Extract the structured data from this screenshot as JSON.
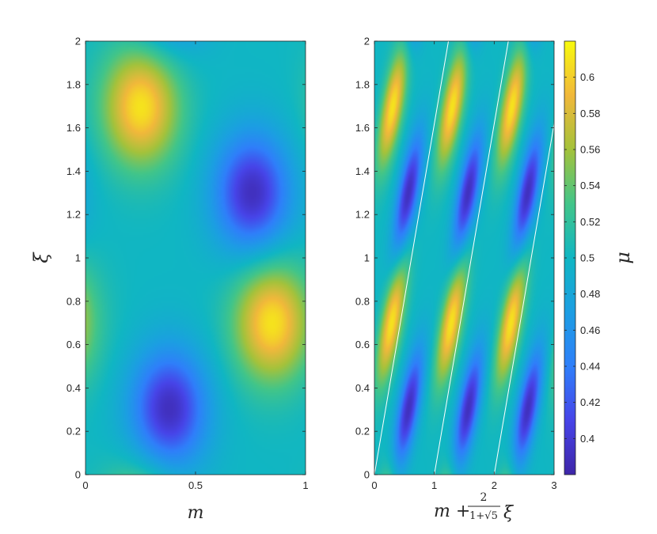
{
  "chart_data": [
    {
      "type": "heatmap",
      "panel": "left",
      "xlabel": "m",
      "ylabel": "ξ",
      "xlim": [
        0,
        1
      ],
      "ylim": [
        0,
        2
      ],
      "xticks": [
        "0",
        "0.5",
        "1"
      ],
      "xtick_values": [
        0,
        0.5,
        1
      ],
      "yticks": [
        "0",
        "0.2",
        "0.4",
        "0.6",
        "0.8",
        "1",
        "1.2",
        "1.4",
        "1.6",
        "1.8",
        "2"
      ],
      "ytick_values": [
        0,
        0.2,
        0.4,
        0.6,
        0.8,
        1,
        1.2,
        1.4,
        1.6,
        1.8,
        2
      ],
      "colormap": "parula",
      "features": [
        {
          "kind": "max",
          "x": 0.25,
          "y": 1.7,
          "value": 0.61
        },
        {
          "kind": "min",
          "x": 0.76,
          "y": 1.3,
          "value": 0.39
        },
        {
          "kind": "max",
          "x": 0.85,
          "y": 0.7,
          "value": 0.61
        },
        {
          "kind": "min",
          "x": 0.38,
          "y": 0.3,
          "value": 0.39
        }
      ]
    },
    {
      "type": "heatmap",
      "panel": "right",
      "xlabel": "m + 2/(1+√5) ξ",
      "ylabel": "",
      "xlim": [
        0,
        3
      ],
      "ylim": [
        0,
        2
      ],
      "xticks": [
        "0",
        "1",
        "2",
        "3"
      ],
      "xtick_values": [
        0,
        1,
        2,
        3
      ],
      "yticks": [
        "0",
        "0.2",
        "0.4",
        "0.6",
        "0.8",
        "1",
        "1.2",
        "1.4",
        "1.6",
        "1.8",
        "2"
      ],
      "ytick_values": [
        0,
        0.2,
        0.4,
        0.6,
        0.8,
        1,
        1.2,
        1.4,
        1.6,
        1.8,
        2
      ],
      "colormap": "parula",
      "boundary_lines": "white lines x = k + 0.618·ξ, k = 0, 1, 2",
      "colorbar": {
        "label": "μ",
        "range": [
          0.38,
          0.62
        ],
        "ticks": [
          "0.4",
          "0.42",
          "0.44",
          "0.46",
          "0.48",
          "0.5",
          "0.52",
          "0.54",
          "0.56",
          "0.58",
          "0.6"
        ],
        "tick_values": [
          0.4,
          0.42,
          0.44,
          0.46,
          0.48,
          0.5,
          0.52,
          0.54,
          0.56,
          0.58,
          0.6
        ]
      }
    }
  ],
  "labels": {
    "left_xlabel": "m",
    "left_ylabel": "ξ",
    "right_xlabel_m": "m +",
    "right_xlabel_num": "2",
    "right_xlabel_den": "1+√5",
    "right_xlabel_xi": "ξ",
    "colorbar_label": "μ"
  }
}
